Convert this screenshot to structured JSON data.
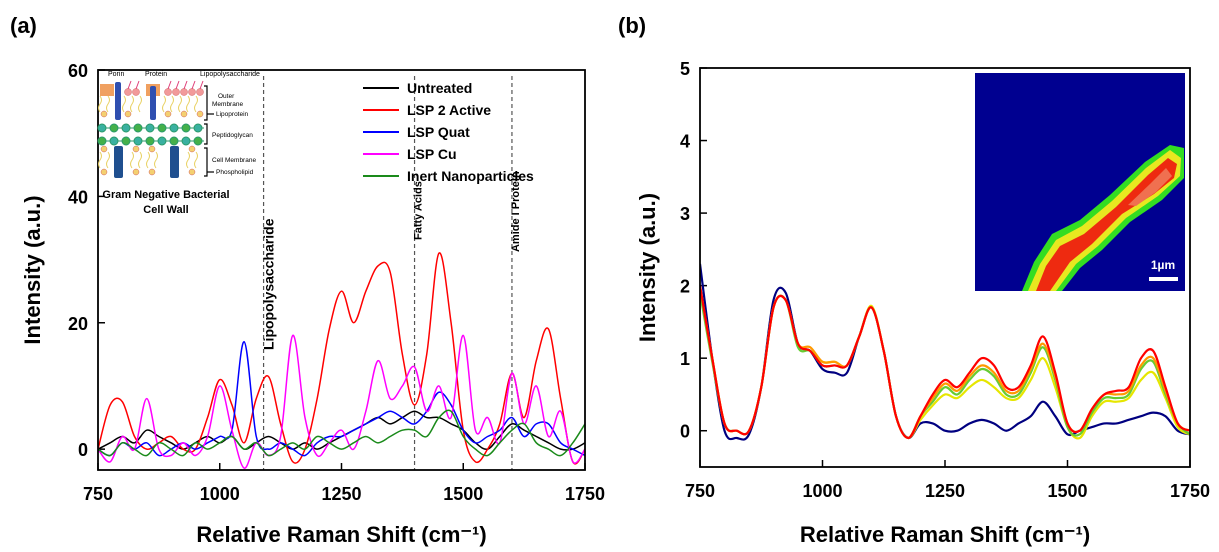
{
  "chart_data": [
    {
      "type": "line",
      "panel_label": "(a)",
      "x_label": "Relative Raman Shift (cm⁻¹)",
      "y_label": "Intensity (a.u.)",
      "x": [
        750,
        775,
        800,
        825,
        850,
        875,
        900,
        925,
        950,
        975,
        1000,
        1025,
        1050,
        1075,
        1100,
        1125,
        1150,
        1175,
        1200,
        1225,
        1250,
        1275,
        1300,
        1325,
        1350,
        1375,
        1400,
        1425,
        1450,
        1475,
        1500,
        1525,
        1550,
        1575,
        1600,
        1625,
        1650,
        1675,
        1700,
        1725,
        1750
      ],
      "xlim": [
        750,
        1750
      ],
      "xticks": [
        750,
        1000,
        1250,
        1500,
        1750
      ],
      "ylim": [
        -3.3,
        60
      ],
      "yticks": [
        0,
        20,
        40,
        60
      ],
      "legend": "upper right",
      "series": [
        {
          "name": "Untreated",
          "color": "#000000",
          "values": [
            0,
            1,
            2,
            1,
            3,
            2,
            1,
            0,
            1,
            2,
            1,
            2,
            0,
            1,
            2,
            1,
            0,
            1,
            0,
            1,
            2,
            3,
            4,
            5,
            4,
            5,
            6,
            5,
            5,
            4,
            3,
            1,
            0,
            2,
            4,
            3,
            2,
            1,
            0,
            0,
            1
          ]
        },
        {
          "name": "LSP 2 Active",
          "color": "#ff0000",
          "values": [
            0,
            7,
            7.5,
            2,
            0,
            1,
            2,
            0,
            0,
            5,
            11,
            7,
            1,
            8,
            11.5,
            4,
            -2,
            0,
            8,
            19,
            25,
            20,
            25,
            29,
            28,
            15,
            7,
            15,
            31,
            20,
            3,
            -2,
            0,
            4,
            12,
            5,
            14,
            19,
            8,
            -2,
            0
          ]
        },
        {
          "name": "LSP Quat",
          "color": "#0000ff",
          "values": [
            0,
            -1,
            1,
            0,
            1,
            -1,
            0,
            1,
            0,
            1,
            2,
            3,
            17,
            2,
            0,
            1,
            0,
            -1,
            1,
            2,
            2,
            3,
            4,
            5,
            6,
            5,
            4,
            6,
            9,
            7,
            3,
            1,
            2,
            3,
            5,
            2,
            4,
            4,
            1,
            0,
            -1
          ]
        },
        {
          "name": "LSP Cu",
          "color": "#ff00ff",
          "values": [
            0,
            -2,
            2,
            0,
            8,
            0,
            -1,
            1,
            -1,
            2,
            10,
            3,
            -3,
            1,
            -1,
            2,
            18,
            5,
            -1,
            1,
            3,
            0,
            6,
            14,
            8,
            10,
            13,
            6,
            10,
            5,
            18,
            3,
            5,
            1,
            12,
            4,
            10,
            2,
            6,
            -2,
            0
          ]
        },
        {
          "name": "Inert Nanoparticles",
          "color": "#1a8a1a",
          "values": [
            0,
            -1,
            1,
            0,
            -1,
            1,
            0,
            -1,
            1,
            0,
            1,
            2,
            0,
            1,
            -1,
            0,
            1,
            0,
            2,
            1,
            0,
            1,
            2,
            1,
            2,
            3,
            3,
            2,
            5,
            6,
            2,
            0,
            -1,
            1,
            3,
            4,
            1,
            0,
            -1,
            1,
            4
          ]
        }
      ],
      "annotations": [
        {
          "x": 1090,
          "label": "Lipopolysaccharide"
        },
        {
          "x": 1400,
          "label": "Fatty Acids"
        },
        {
          "x": 1600,
          "label": "Amide I Protein"
        }
      ],
      "inset_diagram": {
        "labels": [
          "Porin",
          "Protein",
          "Lipopolysaccharide",
          "Outer",
          "Membrane",
          "Lipoprotein",
          "Peptidoglycan",
          "Cell Membrane",
          "Phospholipid"
        ],
        "caption": [
          "Gram Negative Bacterial",
          "Cell Wall"
        ]
      }
    },
    {
      "type": "line",
      "panel_label": "(b)",
      "x_label": "Relative Raman Shift (cm⁻¹)",
      "y_label": "Intensity (a.u.)",
      "x": [
        750,
        775,
        800,
        825,
        850,
        875,
        900,
        925,
        950,
        975,
        1000,
        1025,
        1050,
        1075,
        1100,
        1125,
        1150,
        1175,
        1200,
        1225,
        1250,
        1275,
        1300,
        1325,
        1350,
        1375,
        1400,
        1425,
        1450,
        1475,
        1500,
        1525,
        1550,
        1575,
        1600,
        1625,
        1650,
        1675,
        1700,
        1725,
        1750
      ],
      "xlim": [
        750,
        1750
      ],
      "xticks": [
        750,
        1000,
        1250,
        1500,
        1750
      ],
      "ylim": [
        -0.5,
        5
      ],
      "yticks": [
        0,
        1,
        2,
        3,
        4,
        5
      ],
      "series": [
        {
          "color": "#000080",
          "values": [
            2.3,
            1.0,
            0.0,
            -0.1,
            -0.05,
            0.6,
            1.8,
            1.9,
            1.2,
            1.1,
            0.85,
            0.8,
            0.8,
            1.3,
            1.7,
            1.1,
            0.2,
            -0.1,
            0.1,
            0.1,
            0.0,
            0.0,
            0.1,
            0.15,
            0.1,
            0.0,
            0.1,
            0.2,
            0.4,
            0.2,
            -0.05,
            0.0,
            0.05,
            0.1,
            0.1,
            0.15,
            0.2,
            0.25,
            0.2,
            0.0,
            -0.05
          ]
        },
        {
          "color": "#e6e600",
          "values": [
            1.95,
            1.0,
            0.1,
            0.0,
            0.0,
            0.6,
            1.7,
            1.8,
            1.2,
            1.1,
            0.95,
            0.95,
            0.9,
            1.3,
            1.72,
            1.1,
            0.2,
            -0.1,
            0.15,
            0.35,
            0.5,
            0.45,
            0.6,
            0.7,
            0.6,
            0.45,
            0.45,
            0.7,
            1.0,
            0.6,
            0.05,
            -0.1,
            0.2,
            0.4,
            0.4,
            0.45,
            0.7,
            0.8,
            0.45,
            0.05,
            -0.05
          ]
        },
        {
          "color": "#66cc33",
          "values": [
            1.9,
            0.95,
            0.1,
            0.0,
            0.0,
            0.6,
            1.7,
            1.8,
            1.15,
            1.1,
            0.9,
            0.9,
            0.9,
            1.3,
            1.7,
            1.1,
            0.2,
            -0.1,
            0.2,
            0.4,
            0.6,
            0.5,
            0.7,
            0.85,
            0.75,
            0.5,
            0.5,
            0.8,
            1.15,
            0.7,
            0.05,
            -0.05,
            0.25,
            0.45,
            0.45,
            0.5,
            0.85,
            0.95,
            0.5,
            0.1,
            -0.05
          ]
        },
        {
          "color": "#ff9900",
          "values": [
            2.0,
            1.0,
            0.1,
            0.0,
            0.0,
            0.6,
            1.7,
            1.8,
            1.2,
            1.15,
            0.95,
            0.95,
            0.9,
            1.3,
            1.7,
            1.1,
            0.2,
            -0.1,
            0.2,
            0.45,
            0.65,
            0.55,
            0.75,
            0.9,
            0.8,
            0.55,
            0.55,
            0.85,
            1.2,
            0.75,
            0.1,
            0.0,
            0.3,
            0.5,
            0.5,
            0.55,
            0.9,
            1.0,
            0.55,
            0.1,
            0.0
          ]
        },
        {
          "color": "#ff0000",
          "values": [
            2.0,
            1.0,
            0.1,
            0.0,
            0.0,
            0.6,
            1.7,
            1.8,
            1.2,
            1.1,
            0.9,
            0.9,
            0.9,
            1.3,
            1.7,
            1.1,
            0.2,
            -0.1,
            0.2,
            0.5,
            0.7,
            0.6,
            0.8,
            1.0,
            0.9,
            0.6,
            0.6,
            0.9,
            1.3,
            0.8,
            0.1,
            0.0,
            0.3,
            0.5,
            0.55,
            0.6,
            1.0,
            1.1,
            0.6,
            0.1,
            0.0
          ]
        }
      ],
      "inset_image": {
        "scale_bar_label": "1µm"
      }
    }
  ]
}
